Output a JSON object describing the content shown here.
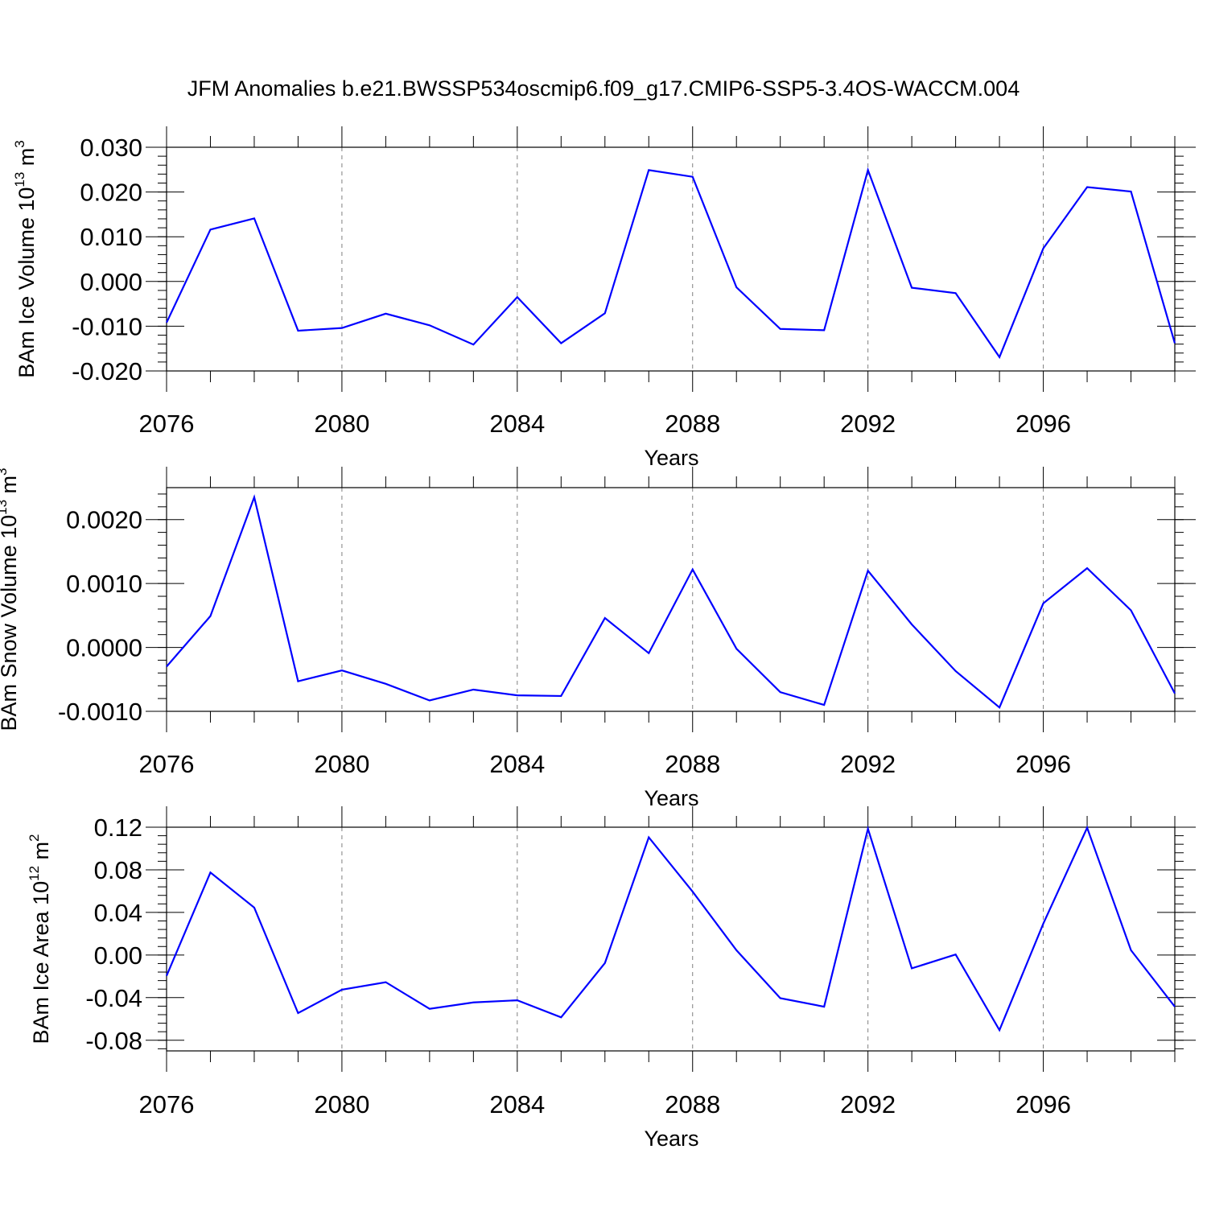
{
  "title": "JFM Anomalies b.e21.BWSSP534oscmip6.f09_g17.CMIP6-SSP5-3.4OS-WACCM.004",
  "colors": {
    "line": "#0000ff",
    "axes": "#000000",
    "grid": "#808080"
  },
  "chart_data": [
    {
      "type": "line",
      "xlabel": "Years",
      "ylabel": {
        "text": "BAm Ice Volume 10",
        "sup1": "13",
        "unit": " m",
        "sup2": "3"
      },
      "x": [
        2076,
        2077,
        2078,
        2079,
        2080,
        2081,
        2082,
        2083,
        2084,
        2085,
        2086,
        2087,
        2088,
        2089,
        2090,
        2091,
        2092,
        2093,
        2094,
        2095,
        2096,
        2097,
        2098,
        2099
      ],
      "series": [
        {
          "values": [
            -0.0092,
            0.0116,
            0.0141,
            -0.011,
            -0.0104,
            -0.0072,
            -0.0098,
            -0.0141,
            -0.0035,
            -0.0138,
            -0.0071,
            0.0249,
            0.0234,
            -0.0013,
            -0.0106,
            -0.0109,
            0.0249,
            -0.0014,
            -0.0026,
            -0.0169,
            0.0074,
            0.0211,
            0.0201,
            -0.0138
          ]
        }
      ],
      "ylim": [
        -0.02,
        0.03
      ],
      "yticks": [
        -0.02,
        -0.01,
        0.0,
        0.01,
        0.02,
        0.03
      ],
      "ytick_labels": [
        "-0.020",
        "-0.010",
        "0.000",
        "0.010",
        "0.020",
        "0.030"
      ],
      "yminor_step": 0.002,
      "xticks": [
        2076,
        2080,
        2084,
        2088,
        2092,
        2096
      ],
      "xtick_labels": [
        "2076",
        "2080",
        "2084",
        "2088",
        "2092",
        "2096"
      ],
      "xlim": [
        2076,
        2099
      ],
      "grid": "vertical dashed at major x ticks"
    },
    {
      "type": "line",
      "xlabel": "Years",
      "ylabel": {
        "text": "BAm Snow Volume 10",
        "sup1": "13",
        "unit": " m",
        "sup2": "3"
      },
      "x": [
        2076,
        2077,
        2078,
        2079,
        2080,
        2081,
        2082,
        2083,
        2084,
        2085,
        2086,
        2087,
        2088,
        2089,
        2090,
        2091,
        2092,
        2093,
        2094,
        2095,
        2096,
        2097,
        2098,
        2099
      ],
      "series": [
        {
          "values": [
            -0.0003,
            0.00049,
            0.00235,
            -0.00053,
            -0.00036,
            -0.00057,
            -0.00083,
            -0.00066,
            -0.00075,
            -0.00076,
            0.00046,
            -9e-05,
            0.00122,
            -2e-05,
            -0.0007,
            -0.0009,
            0.0012,
            0.00036,
            -0.00037,
            -0.00094,
            0.00069,
            0.00124,
            0.00058,
            -0.00072
          ]
        }
      ],
      "ylim": [
        -0.001,
        0.0025
      ],
      "yticks": [
        -0.001,
        0.0,
        0.001,
        0.002
      ],
      "ytick_labels": [
        "-0.0010",
        "0.0000",
        "0.0010",
        "0.0020"
      ],
      "yminor_step": 0.0002,
      "xticks": [
        2076,
        2080,
        2084,
        2088,
        2092,
        2096
      ],
      "xtick_labels": [
        "2076",
        "2080",
        "2084",
        "2088",
        "2092",
        "2096"
      ],
      "xlim": [
        2076,
        2099
      ],
      "grid": "vertical dashed at major x ticks"
    },
    {
      "type": "line",
      "xlabel": "Years",
      "ylabel": {
        "text": "BAm Ice Area 10",
        "sup1": "12",
        "unit": " m",
        "sup2": "2"
      },
      "x": [
        2076,
        2077,
        2078,
        2079,
        2080,
        2081,
        2082,
        2083,
        2084,
        2085,
        2086,
        2087,
        2088,
        2089,
        2090,
        2091,
        2092,
        2093,
        2094,
        2095,
        2096,
        2097,
        2098,
        2099
      ],
      "series": [
        {
          "values": [
            -0.0195,
            0.0775,
            0.0445,
            -0.0545,
            -0.0325,
            -0.0255,
            -0.0505,
            -0.0445,
            -0.0425,
            -0.0585,
            -0.0075,
            0.1105,
            0.0595,
            0.0045,
            -0.0405,
            -0.0485,
            0.1185,
            -0.0125,
            0.0005,
            -0.0705,
            0.0295,
            0.1195,
            0.0045,
            -0.0485
          ]
        }
      ],
      "ylim": [
        -0.09,
        0.12
      ],
      "yticks": [
        -0.08,
        -0.04,
        0.0,
        0.04,
        0.08,
        0.12
      ],
      "ytick_labels": [
        "-0.08",
        "-0.04",
        "0.00",
        "0.04",
        "0.08",
        "0.12"
      ],
      "yminor_step": 0.008,
      "xticks": [
        2076,
        2080,
        2084,
        2088,
        2092,
        2096
      ],
      "xtick_labels": [
        "2076",
        "2080",
        "2084",
        "2088",
        "2092",
        "2096"
      ],
      "xlim": [
        2076,
        2099
      ],
      "grid": "vertical dashed at major x ticks"
    }
  ]
}
